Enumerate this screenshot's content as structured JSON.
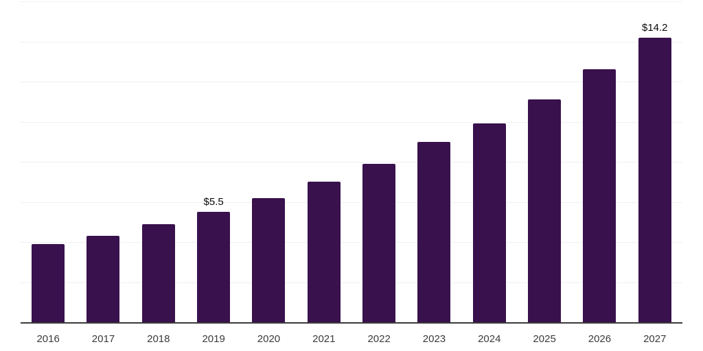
{
  "chart_data": {
    "type": "bar",
    "title": "",
    "categories": [
      "2016",
      "2017",
      "2018",
      "2019",
      "2020",
      "2021",
      "2022",
      "2023",
      "2024",
      "2025",
      "2026",
      "2027"
    ],
    "values": [
      3.9,
      4.3,
      4.9,
      5.5,
      6.2,
      7.0,
      7.9,
      9.0,
      9.9,
      11.1,
      12.6,
      14.2
    ],
    "data_labels": [
      {
        "category": "2019",
        "text": "$5.5"
      },
      {
        "category": "2027",
        "text": "$14.2"
      }
    ],
    "ylim": [
      0,
      16
    ],
    "grid_step": 2,
    "grid": "horizontal",
    "legend": "none",
    "colors": {
      "bar": "#38114d",
      "gridline": "#f0f0f2",
      "axis": "#3a3a3a",
      "tick_label": "#3a3a3a",
      "data_label": "#0a0a0a",
      "background": "#ffffff"
    }
  }
}
